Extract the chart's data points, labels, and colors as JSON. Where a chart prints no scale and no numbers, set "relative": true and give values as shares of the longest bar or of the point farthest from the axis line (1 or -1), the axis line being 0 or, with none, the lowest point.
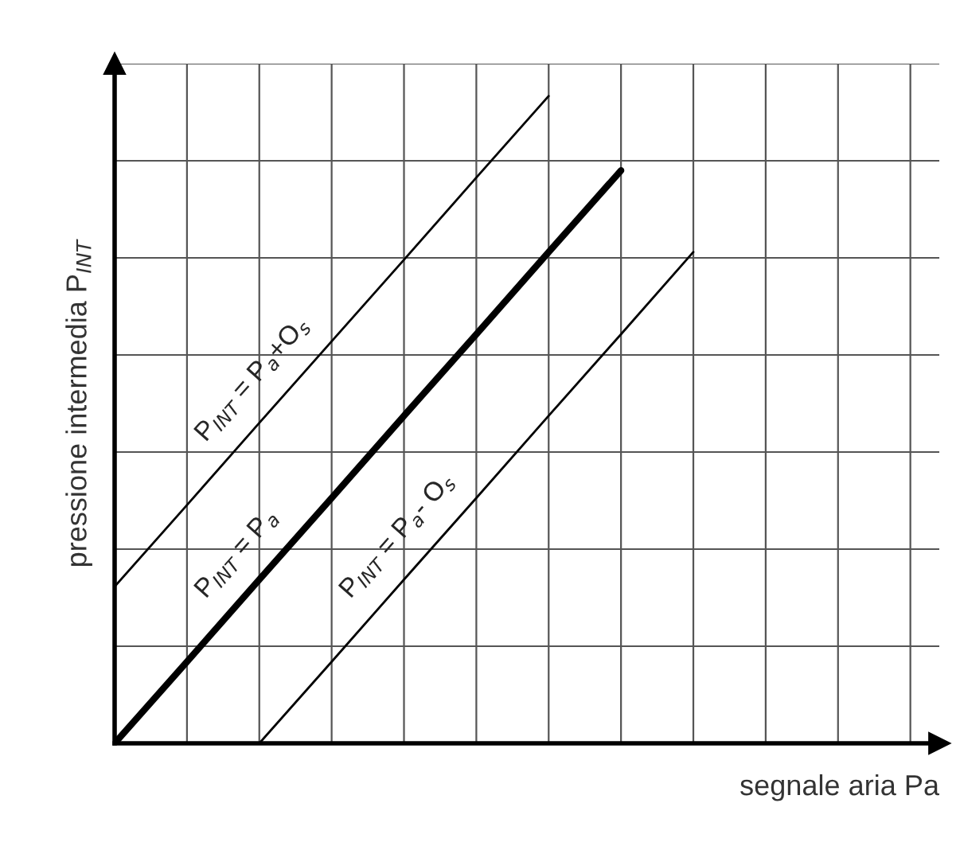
{
  "chart_data": {
    "type": "line",
    "relative": true,
    "xlabel": "segnale aria Pa",
    "ylabel": "pressione intermedia P$_{INT}$",
    "categories": [
      null,
      null,
      null,
      null,
      null,
      null,
      null,
      null,
      null,
      null,
      null,
      null
    ],
    "series": [
      {
        "name": "P$_{INT}$ = P$_{a}$+O$_{s}$",
        "color": "#000000",
        "values": [
          0.242,
          0.368,
          0.495,
          0.621,
          0.747,
          0.874,
          1.0,
          null,
          null,
          null,
          null,
          null
        ]
      },
      {
        "name": "P$_{INT}$ = P$_{a}$",
        "color": "#000000",
        "values": [
          0,
          0.126,
          0.253,
          0.379,
          0.506,
          0.632,
          0.759,
          0.885,
          null,
          null,
          null,
          null
        ]
      },
      {
        "name": "P$_{INT}$ = P$_{a}$- O$_{s}$",
        "color": "#000000",
        "values": [
          null,
          null,
          0,
          0.126,
          0.253,
          0.379,
          0.506,
          0.632,
          0.759,
          null,
          null,
          null
        ]
      }
    ],
    "grid": true,
    "tick_labels": false,
    "legend": false,
    "marker": "none",
    "line_style": "solid"
  }
}
